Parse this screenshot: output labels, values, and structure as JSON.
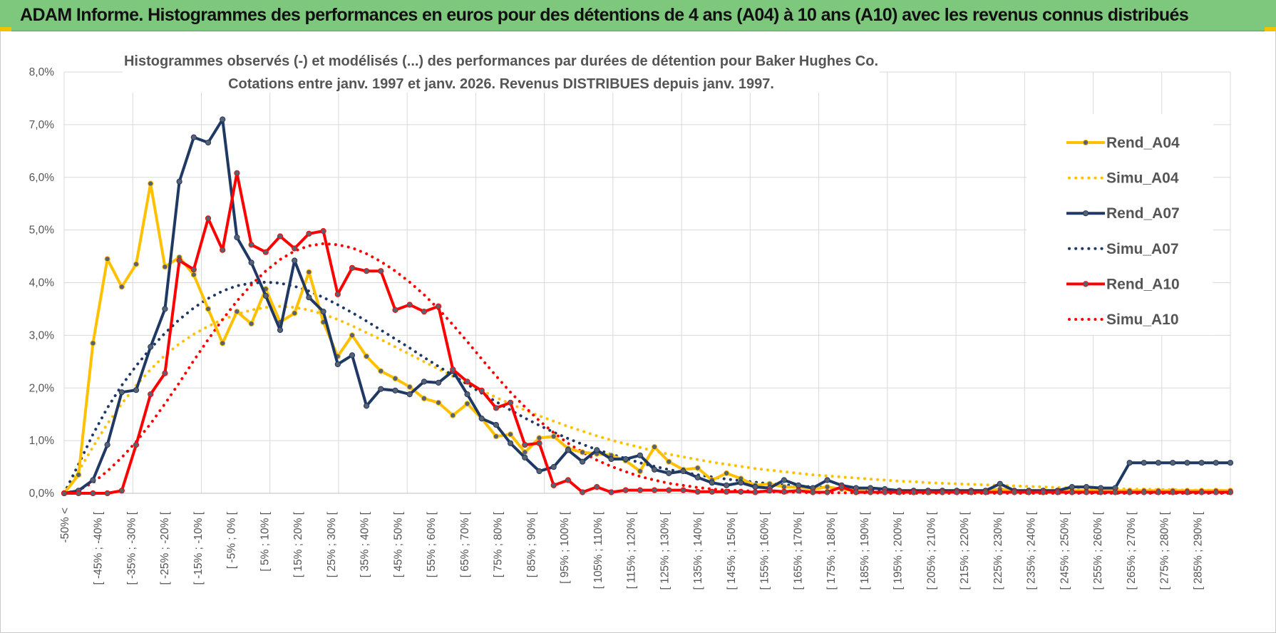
{
  "banner": {
    "title": "ADAM Informe. Histogrammes des performances en euros pour des détentions de 4 ans (A04) à 10 ans (A10) avec les revenus connus distribués"
  },
  "chart_data": {
    "type": "line",
    "title_line1": "Histogrammes observés (-) et modélisés (...) des performances par durées de détention pour Baker Hughes Co.",
    "title_line2": "Cotations entre janv. 1997 et janv. 2026. Revenus DISTRIBUES depuis janv. 1997.",
    "ylim": [
      0,
      8
    ],
    "y_ticks": [
      "0,0%",
      "1,0%",
      "2,0%",
      "3,0%",
      "4,0%",
      "5,0%",
      "6,0%",
      "7,0%",
      "8,0%"
    ],
    "x_labels": [
      "-50% <",
      "[ -45% ; -40% [",
      "[ -35% ; -30% [",
      "[ -25% ; -20% [",
      "[ -15% ; -10% [",
      "[ -5% ; 0% [",
      "[ 5% ; 10% [",
      "[ 15% ; 20% [",
      "[ 25% ; 30% [",
      "[ 35% ; 40% [",
      "[ 45% ; 50% [",
      "[ 55% ; 60% [",
      "[ 65% ; 70% [",
      "[ 75% ; 80% [",
      "[ 85% ; 90% [",
      "[ 95% ; 100% [",
      "[ 105% ; 110% [",
      "[ 115% ; 120% [",
      "[ 125% ; 130% [",
      "[ 135% ; 140% [",
      "[ 145% ; 150% [",
      "[ 155% ; 160% [",
      "[ 165% ; 170% [",
      "[ 175% ; 180% [",
      "[ 185% ; 190% [",
      "[ 195% ; 200% [",
      "[ 205% ; 210% [",
      "[ 215% ; 220% [",
      "[ 225% ; 230% [",
      "[ 235% ; 240% [",
      "[ 245% ; 250% [",
      "[ 255% ; 260% [",
      "[ 265% ; 270% [",
      "[ 275% ; 280% [",
      "[ 285% ; 290% ["
    ],
    "series": [
      {
        "name": "Rend_A04",
        "color": "#FFC000",
        "style": "solid",
        "values": [
          0.0,
          0.35,
          2.85,
          4.45,
          3.92,
          4.35,
          5.88,
          4.3,
          4.48,
          4.15,
          3.5,
          2.85,
          3.45,
          3.22,
          3.88,
          3.25,
          3.42,
          4.2,
          3.25,
          2.6,
          3.0,
          2.6,
          2.32,
          2.18,
          2.02,
          1.8,
          1.72,
          1.48,
          1.7,
          1.42,
          1.08,
          1.12,
          0.78,
          1.05,
          1.08,
          0.85,
          0.78,
          0.75,
          0.72,
          0.62,
          0.42,
          0.88,
          0.6,
          0.45,
          0.48,
          0.25,
          0.38,
          0.28,
          0.15,
          0.18,
          0.12,
          0.12,
          0.08,
          0.12,
          0.08,
          0.05,
          0.1,
          0.08,
          0.05,
          0.05,
          0.05,
          0.05,
          0.05,
          0.05,
          0.05,
          0.08,
          0.05,
          0.05,
          0.05,
          0.05,
          0.05,
          0.05,
          0.05,
          0.05,
          0.05,
          0.05,
          0.05,
          0.05,
          0.05,
          0.05,
          0.05,
          0.05
        ]
      },
      {
        "name": "Simu_A04",
        "color": "#FFC000",
        "style": "dotted",
        "values": [
          0.0,
          0.42,
          0.88,
          1.32,
          1.7,
          2.05,
          2.35,
          2.62,
          2.84,
          3.02,
          3.17,
          3.3,
          3.4,
          3.48,
          3.53,
          3.55,
          3.53,
          3.48,
          3.4,
          3.3,
          3.18,
          3.05,
          2.92,
          2.78,
          2.64,
          2.5,
          2.36,
          2.22,
          2.08,
          1.95,
          1.82,
          1.7,
          1.58,
          1.47,
          1.37,
          1.27,
          1.18,
          1.09,
          1.01,
          0.94,
          0.87,
          0.8,
          0.74,
          0.69,
          0.64,
          0.59,
          0.55,
          0.51,
          0.47,
          0.44,
          0.41,
          0.38,
          0.35,
          0.33,
          0.31,
          0.29,
          0.27,
          0.25,
          0.23,
          0.22,
          0.2,
          0.19,
          0.18,
          0.17,
          0.16,
          0.15,
          0.14,
          0.13,
          0.12,
          0.11,
          0.1,
          0.1,
          0.09,
          0.09,
          0.08,
          0.08,
          0.07,
          0.07,
          0.06,
          0.06,
          0.06,
          0.05
        ]
      },
      {
        "name": "Rend_A07",
        "color": "#1F3864",
        "style": "solid",
        "values": [
          0.0,
          0.05,
          0.25,
          0.92,
          1.92,
          1.96,
          2.78,
          3.5,
          5.92,
          6.76,
          6.66,
          7.1,
          4.86,
          4.38,
          3.75,
          3.1,
          4.42,
          3.72,
          3.45,
          2.45,
          2.62,
          1.66,
          1.98,
          1.95,
          1.88,
          2.12,
          2.1,
          2.32,
          1.88,
          1.42,
          1.3,
          0.95,
          0.68,
          0.42,
          0.5,
          0.82,
          0.6,
          0.82,
          0.65,
          0.65,
          0.72,
          0.45,
          0.38,
          0.42,
          0.3,
          0.2,
          0.15,
          0.2,
          0.12,
          0.1,
          0.25,
          0.15,
          0.1,
          0.25,
          0.15,
          0.1,
          0.1,
          0.08,
          0.05,
          0.05,
          0.05,
          0.05,
          0.05,
          0.05,
          0.05,
          0.18,
          0.05,
          0.05,
          0.05,
          0.05,
          0.12,
          0.12,
          0.1,
          0.1,
          0.58,
          0.58,
          0.58,
          0.58,
          0.58,
          0.58,
          0.58,
          0.58
        ]
      },
      {
        "name": "Simu_A07",
        "color": "#1F3864",
        "style": "dotted",
        "values": [
          0.0,
          0.55,
          1.12,
          1.62,
          2.05,
          2.42,
          2.75,
          3.04,
          3.3,
          3.52,
          3.7,
          3.84,
          3.94,
          3.99,
          4.01,
          3.99,
          3.93,
          3.84,
          3.72,
          3.58,
          3.43,
          3.27,
          3.1,
          2.93,
          2.76,
          2.58,
          2.41,
          2.24,
          2.07,
          1.9,
          1.74,
          1.58,
          1.43,
          1.29,
          1.16,
          1.04,
          0.93,
          0.83,
          0.74,
          0.66,
          0.58,
          0.51,
          0.45,
          0.4,
          0.35,
          0.31,
          0.27,
          0.24,
          0.21,
          0.18,
          0.16,
          0.14,
          0.12,
          0.11,
          0.09,
          0.08,
          0.07,
          0.06,
          0.05,
          0.05,
          0.04,
          0.04,
          0.03,
          0.03,
          0.03,
          0.02,
          0.02,
          0.02,
          0.02,
          0.02,
          0.01,
          0.01,
          0.01,
          0.01,
          0.01,
          0.01,
          0.01,
          0.01,
          0.01,
          0.01,
          0.01,
          0.01
        ]
      },
      {
        "name": "Rend_A10",
        "color": "#FF0000",
        "style": "solid",
        "values": [
          0.0,
          0.0,
          0.0,
          0.0,
          0.05,
          0.92,
          1.88,
          2.28,
          4.42,
          4.25,
          5.22,
          4.62,
          6.08,
          4.72,
          4.58,
          4.88,
          4.65,
          4.93,
          4.98,
          3.78,
          4.28,
          4.22,
          4.22,
          3.48,
          3.58,
          3.45,
          3.55,
          2.35,
          2.12,
          1.95,
          1.62,
          1.72,
          0.92,
          0.95,
          0.15,
          0.25,
          0.02,
          0.12,
          0.02,
          0.06,
          0.06,
          0.06,
          0.06,
          0.06,
          0.03,
          0.03,
          0.03,
          0.03,
          0.02,
          0.05,
          0.03,
          0.05,
          0.02,
          0.02,
          0.12,
          0.02,
          0.02,
          0.02,
          0.02,
          0.02,
          0.02,
          0.02,
          0.02,
          0.02,
          0.02,
          0.02,
          0.02,
          0.02,
          0.02,
          0.02,
          0.02,
          0.02,
          0.02,
          0.02,
          0.02,
          0.02,
          0.02,
          0.02,
          0.02,
          0.02,
          0.02,
          0.02
        ]
      },
      {
        "name": "Simu_A10",
        "color": "#FF0000",
        "style": "dotted",
        "values": [
          0.0,
          0.06,
          0.2,
          0.42,
          0.68,
          0.98,
          1.32,
          1.7,
          2.1,
          2.52,
          2.92,
          3.3,
          3.65,
          3.96,
          4.22,
          4.44,
          4.6,
          4.7,
          4.74,
          4.72,
          4.66,
          4.55,
          4.4,
          4.22,
          4.01,
          3.77,
          3.5,
          3.2,
          2.88,
          2.55,
          2.23,
          1.92,
          1.64,
          1.38,
          1.15,
          0.95,
          0.78,
          0.63,
          0.51,
          0.41,
          0.32,
          0.25,
          0.19,
          0.15,
          0.11,
          0.08,
          0.06,
          0.05,
          0.04,
          0.03,
          0.02,
          0.02,
          0.01,
          0.01,
          0.01,
          0.01,
          0.01,
          0.0,
          0.0,
          0.0,
          0.0,
          0.0,
          0.0,
          0.0,
          0.0,
          0.0,
          0.0,
          0.0,
          0.0,
          0.0,
          0.0,
          0.0,
          0.0,
          0.0,
          0.0,
          0.0,
          0.0,
          0.0,
          0.0,
          0.0,
          0.0,
          0.0
        ]
      }
    ]
  }
}
